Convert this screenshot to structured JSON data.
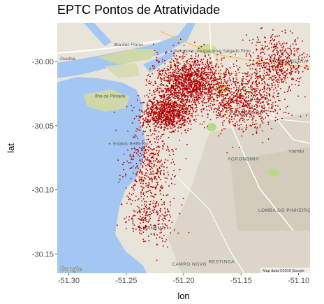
{
  "title": "EPTC Pontos de Atratividade",
  "axes": {
    "xlabel": "lon",
    "ylabel": "lat",
    "x_ticks": [
      {
        "value": -51.3,
        "label": "-51.30"
      },
      {
        "value": -51.25,
        "label": "-51.25"
      },
      {
        "value": -51.2,
        "label": "-51.20"
      },
      {
        "value": -51.15,
        "label": "-51.15"
      },
      {
        "value": -51.1,
        "label": "-51.10"
      }
    ],
    "y_ticks": [
      {
        "value": -30.0,
        "label": "-30.00"
      },
      {
        "value": -30.05,
        "label": "-30.05"
      },
      {
        "value": -30.1,
        "label": "-30.10"
      },
      {
        "value": -30.15,
        "label": "-30.15"
      }
    ]
  },
  "map_labels": [
    {
      "text": "Ilha das Flores",
      "lon": -51.248,
      "lat": -29.988
    },
    {
      "text": "Ilha da Pintada",
      "lon": -51.264,
      "lat": -30.028
    },
    {
      "text": "Estádio Beira-Rio",
      "lon": -51.246,
      "lat": -30.065
    },
    {
      "text": "Aeroporto Internacional Salgado Filho",
      "lon": -51.175,
      "lat": -29.993
    },
    {
      "text": "PETRÓPOLIS",
      "lon": -51.145,
      "lat": -30.041
    },
    {
      "text": "AGRONOMIA",
      "lon": -51.148,
      "lat": -30.077
    },
    {
      "text": "LOMBA DO PINHEIRO",
      "lon": -51.112,
      "lat": -30.117
    },
    {
      "text": "RUBEM BERTA",
      "lon": -51.108,
      "lat": -30.001
    },
    {
      "text": "Viamão",
      "lon": -51.102,
      "lat": -30.071
    },
    {
      "text": "IPANEMA",
      "lon": -51.226,
      "lat": -30.131
    },
    {
      "text": "RESTINGA",
      "lon": -51.167,
      "lat": -30.157
    },
    {
      "text": "CAMPO NOVO",
      "lon": -51.195,
      "lat": -30.159
    },
    {
      "text": "Guaíba",
      "lon": -51.301,
      "lat": -29.999
    }
  ],
  "basemap": {
    "attribution": "Map data ©2016 Google",
    "logo": "Google"
  },
  "colors": {
    "water": "#a4c6f3",
    "land": "#e9e4d9",
    "park": "#c8df9d",
    "point": "#b00000",
    "road_major": "#ffffff"
  },
  "chart_data": {
    "type": "scatter",
    "title": "EPTC Pontos de Atratividade",
    "xlabel": "lon",
    "ylabel": "lat",
    "xlim": [
      -51.31,
      -51.09
    ],
    "ylim": [
      -30.165,
      -29.97
    ],
    "grid": false,
    "legend": "none",
    "marker_color": "#b00000",
    "clusters": [
      {
        "lon": -51.195,
        "lat": -30.015,
        "spread_lon": 0.028,
        "spread_lat": 0.018,
        "weight": 34
      },
      {
        "lon": -51.215,
        "lat": -30.04,
        "spread_lon": 0.02,
        "spread_lat": 0.012,
        "weight": 22
      },
      {
        "lon": -51.15,
        "lat": -30.03,
        "spread_lon": 0.03,
        "spread_lat": 0.022,
        "weight": 20
      },
      {
        "lon": -51.12,
        "lat": -30.0,
        "spread_lon": 0.022,
        "spread_lat": 0.02,
        "weight": 12
      },
      {
        "lon": -51.23,
        "lat": -30.08,
        "spread_lon": 0.02,
        "spread_lat": 0.025,
        "weight": 10
      },
      {
        "lon": -51.23,
        "lat": -30.12,
        "spread_lon": 0.02,
        "spread_lat": 0.02,
        "weight": 6
      }
    ]
  }
}
